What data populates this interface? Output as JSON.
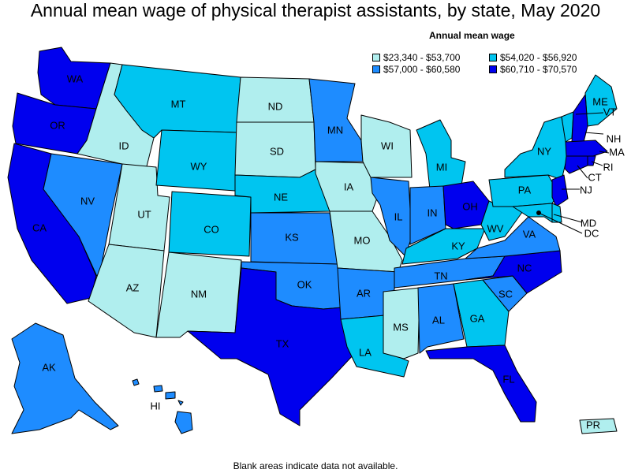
{
  "title": "Annual mean wage of physical therapist assistants, by state, May 2020",
  "legend": {
    "title": "Annual mean wage",
    "bins": [
      {
        "label": "$23,340 - $53,700",
        "color": "#b0eeee"
      },
      {
        "label": "$54,020 - $56,920",
        "color": "#00c5f0"
      },
      {
        "label": "$57,000 - $60,580",
        "color": "#1e8cff"
      },
      {
        "label": "$60,710 - $70,570",
        "color": "#0000ee"
      }
    ]
  },
  "footnote": "Blank areas indicate data not available.",
  "states": [
    {
      "abbr": "WA",
      "bin": 3
    },
    {
      "abbr": "OR",
      "bin": 3
    },
    {
      "abbr": "CA",
      "bin": 3
    },
    {
      "abbr": "ID",
      "bin": 0
    },
    {
      "abbr": "NV",
      "bin": 2
    },
    {
      "abbr": "UT",
      "bin": 0
    },
    {
      "abbr": "AZ",
      "bin": 0
    },
    {
      "abbr": "MT",
      "bin": 1
    },
    {
      "abbr": "WY",
      "bin": 1
    },
    {
      "abbr": "CO",
      "bin": 1
    },
    {
      "abbr": "NM",
      "bin": 0
    },
    {
      "abbr": "ND",
      "bin": 0
    },
    {
      "abbr": "SD",
      "bin": 0
    },
    {
      "abbr": "NE",
      "bin": 1
    },
    {
      "abbr": "KS",
      "bin": 2
    },
    {
      "abbr": "OK",
      "bin": 2
    },
    {
      "abbr": "TX",
      "bin": 3
    },
    {
      "abbr": "MN",
      "bin": 2
    },
    {
      "abbr": "IA",
      "bin": 0
    },
    {
      "abbr": "MO",
      "bin": 0
    },
    {
      "abbr": "AR",
      "bin": 2
    },
    {
      "abbr": "LA",
      "bin": 1
    },
    {
      "abbr": "WI",
      "bin": 0
    },
    {
      "abbr": "IL",
      "bin": 2
    },
    {
      "abbr": "MI",
      "bin": 1
    },
    {
      "abbr": "IN",
      "bin": 2
    },
    {
      "abbr": "OH",
      "bin": 3
    },
    {
      "abbr": "KY",
      "bin": 1
    },
    {
      "abbr": "TN",
      "bin": 2
    },
    {
      "abbr": "MS",
      "bin": 0
    },
    {
      "abbr": "AL",
      "bin": 2
    },
    {
      "abbr": "GA",
      "bin": 1
    },
    {
      "abbr": "FL",
      "bin": 3
    },
    {
      "abbr": "SC",
      "bin": 2
    },
    {
      "abbr": "NC",
      "bin": 3
    },
    {
      "abbr": "VA",
      "bin": 2
    },
    {
      "abbr": "WV",
      "bin": 1
    },
    {
      "abbr": "PA",
      "bin": 1
    },
    {
      "abbr": "NY",
      "bin": 1
    },
    {
      "abbr": "ME",
      "bin": 1
    },
    {
      "abbr": "VT",
      "bin": 1
    },
    {
      "abbr": "NH",
      "bin": 3
    },
    {
      "abbr": "MA",
      "bin": 3
    },
    {
      "abbr": "RI",
      "bin": 3
    },
    {
      "abbr": "CT",
      "bin": 3
    },
    {
      "abbr": "NJ",
      "bin": 3
    },
    {
      "abbr": "DE",
      "bin": 1
    },
    {
      "abbr": "MD",
      "bin": 1
    },
    {
      "abbr": "DC",
      "bin": 3
    },
    {
      "abbr": "AK",
      "bin": 2
    },
    {
      "abbr": "HI",
      "bin": 2
    },
    {
      "abbr": "PR",
      "bin": 0
    }
  ]
}
